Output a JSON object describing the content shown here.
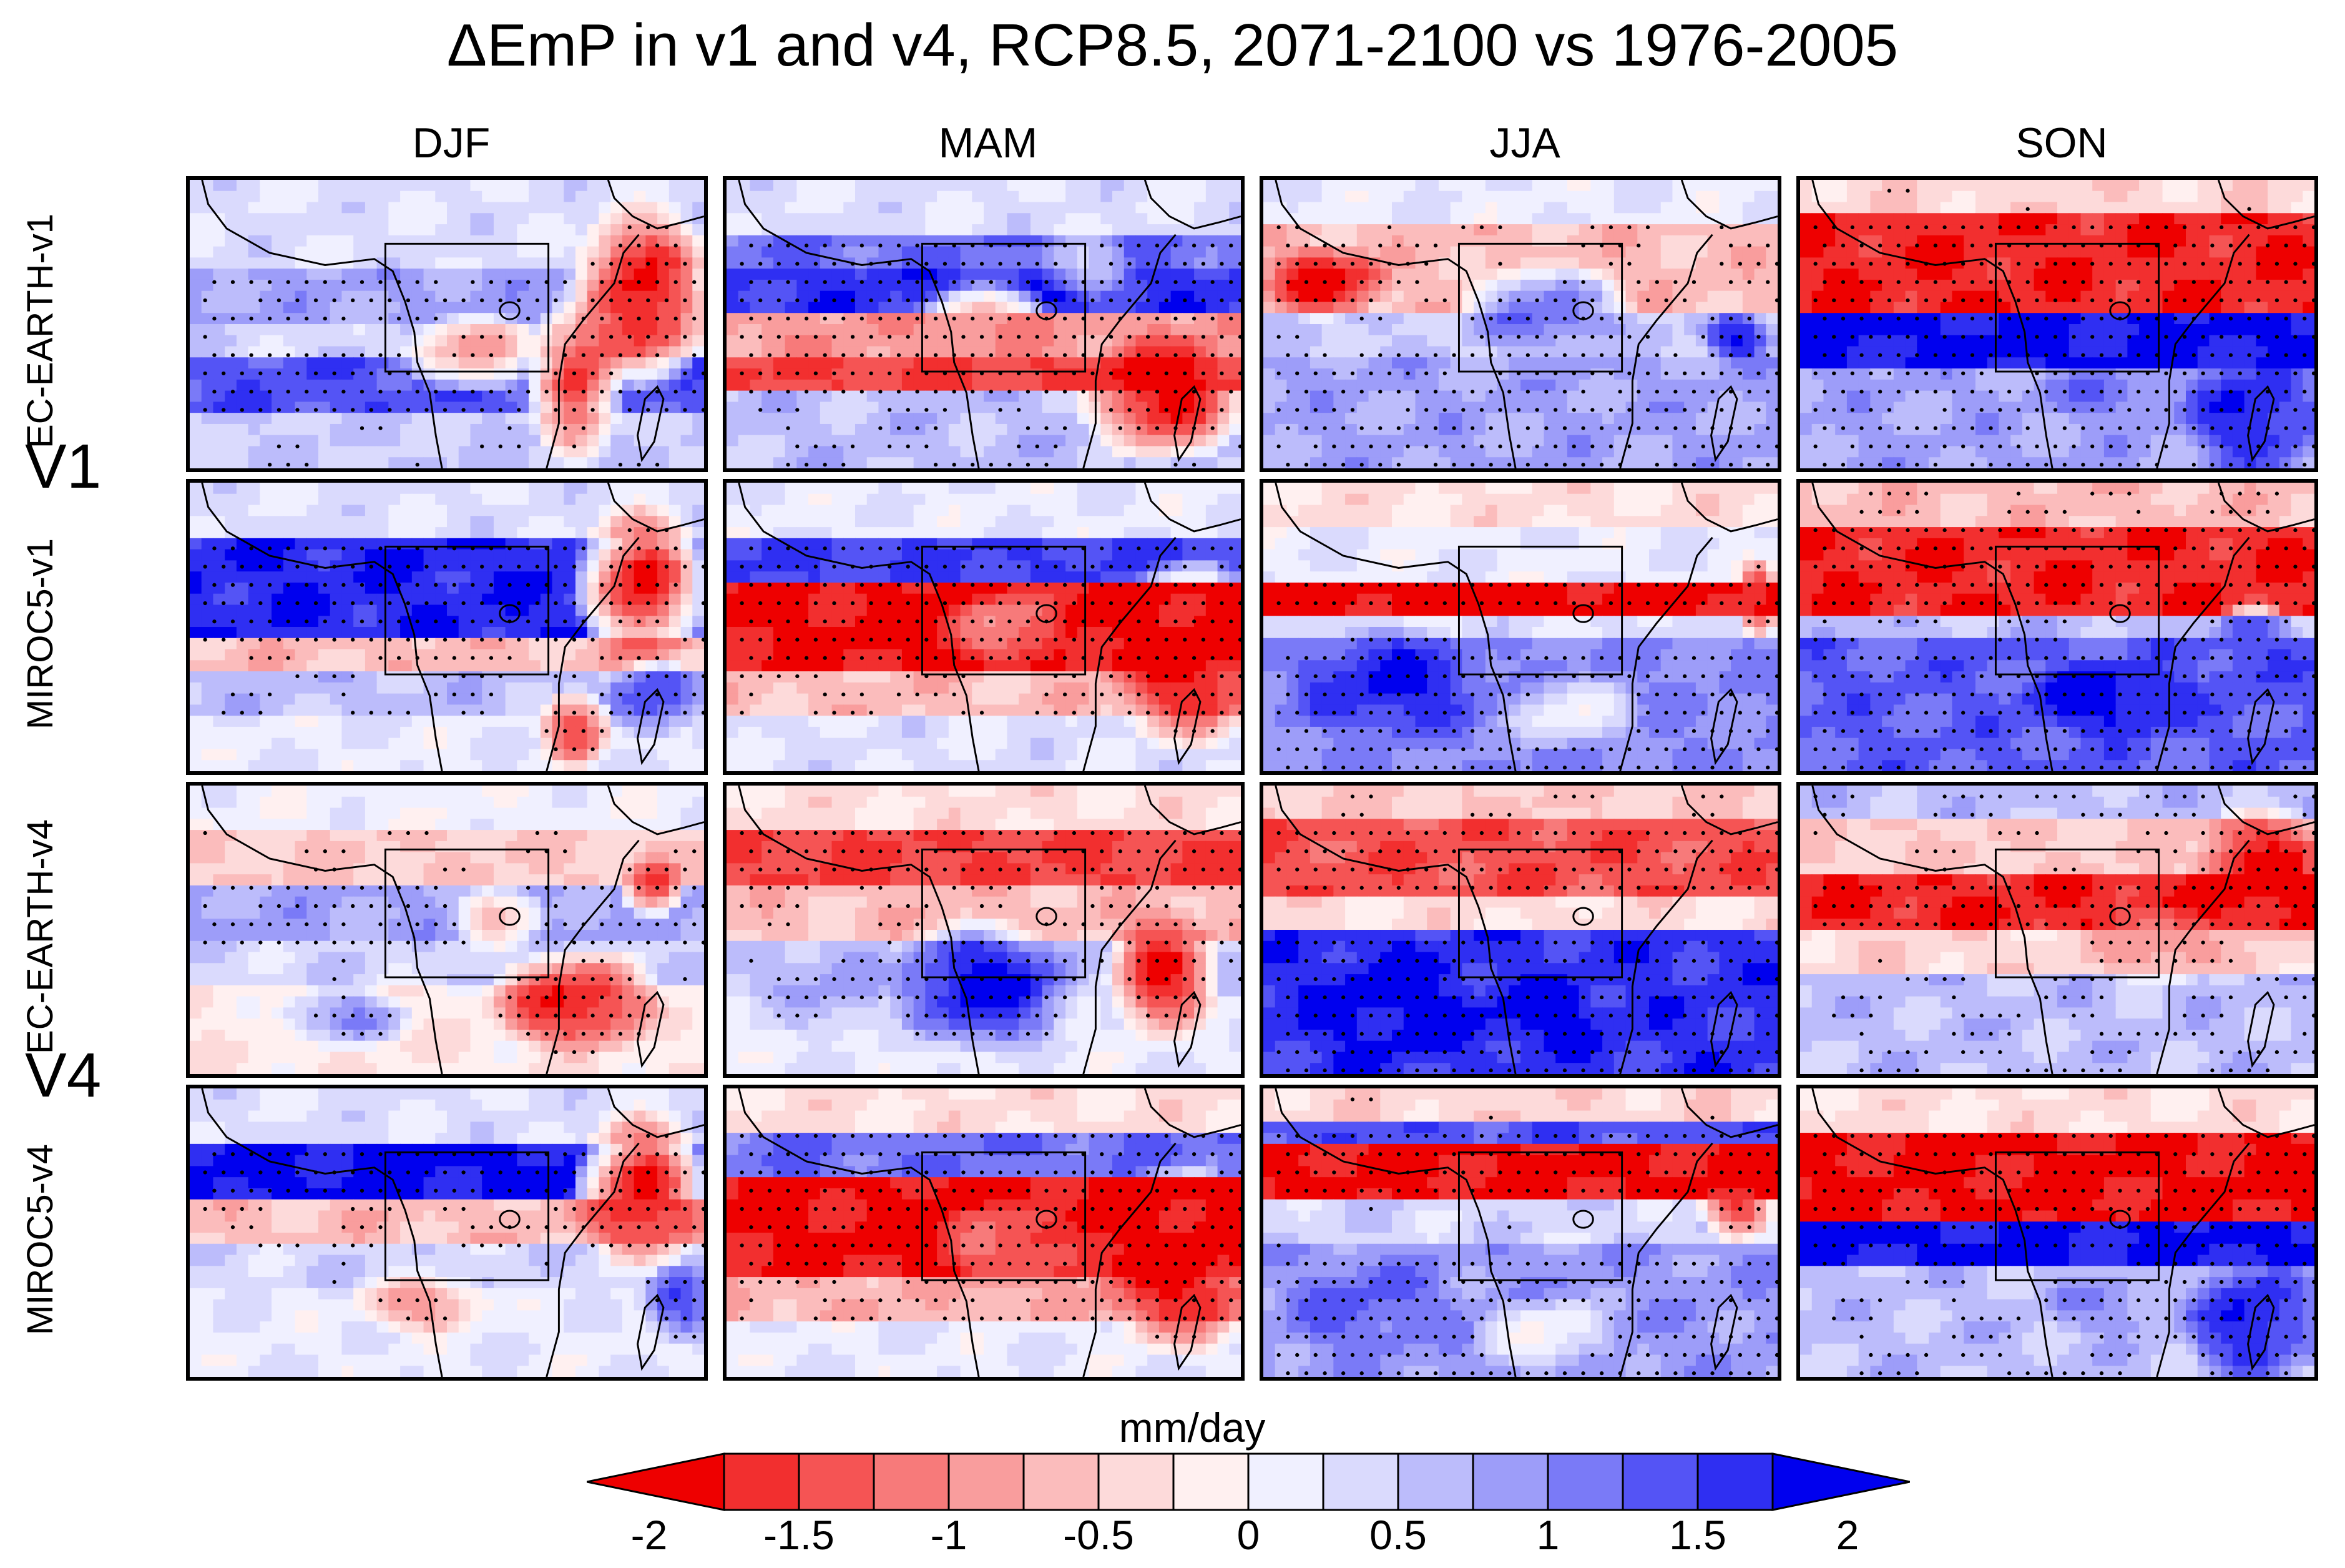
{
  "title": "ΔEmP in v1 and v4, RCP8.5, 2071-2100 vs 1976-2005",
  "seasons": [
    "DJF",
    "MAM",
    "JJA",
    "SON"
  ],
  "row_labels": [
    "EC-EARTH-v1",
    "MIROC5-v1",
    "EC-EARTH-v4",
    "MIROC5-v4"
  ],
  "group_labels": [
    "V1",
    "V4"
  ],
  "colorbar": {
    "units": "mm/day",
    "tick_labels": [
      "-2",
      "-1.5",
      "-1",
      "-0.5",
      "0",
      "0.5",
      "1",
      "1.5",
      "2"
    ],
    "levels": [
      -2,
      -1.75,
      -1.5,
      -1.25,
      -1,
      -0.75,
      -0.5,
      -0.25,
      0,
      0.25,
      0.5,
      0.75,
      1,
      1.25,
      1.5,
      1.75,
      2
    ],
    "colors": [
      "#ee0000",
      "#f22f2f",
      "#f55454",
      "#f77a7a",
      "#f99d9d",
      "#fbbcbc",
      "#fddada",
      "#fff0f0",
      "#f0f0ff",
      "#dadafd",
      "#bcbcfb",
      "#9d9df9",
      "#7a7af7",
      "#5454f5",
      "#2f2ff2",
      "#0000ee"
    ],
    "extend": "both"
  },
  "chart_data": {
    "type": "heatmap",
    "title": "ΔEmP in v1 and v4, RCP8.5, 2071-2100 vs 1976-2005",
    "units": "mm/day",
    "range": [
      -2,
      2
    ],
    "columns": [
      "DJF",
      "MAM",
      "JJA",
      "SON"
    ],
    "rows": [
      "EC-EARTH-v1",
      "MIROC5-v1",
      "EC-EARTH-v4",
      "MIROC5-v4"
    ],
    "stippling": true,
    "region_box": true,
    "panels": [
      [
        {
          "bands": [
            [
              0.0,
              0.3,
              0.3
            ],
            [
              0.3,
              0.5,
              0.8
            ],
            [
              0.5,
              0.6,
              0.4
            ],
            [
              0.6,
              0.8,
              1.4
            ],
            [
              0.8,
              1.0,
              0.5
            ]
          ],
          "blobs": [
            [
              0.88,
              0.4,
              0.15,
              0.35,
              -1.9
            ],
            [
              0.75,
              0.7,
              0.1,
              0.3,
              -1.6
            ],
            [
              0.55,
              0.6,
              0.15,
              0.15,
              -0.8
            ]
          ]
        },
        {
          "bands": [
            [
              0.0,
              0.2,
              0.3
            ],
            [
              0.2,
              0.3,
              1.2
            ],
            [
              0.3,
              0.45,
              1.6
            ],
            [
              0.45,
              0.6,
              -0.9
            ],
            [
              0.6,
              0.75,
              -1.5
            ],
            [
              0.75,
              1.0,
              0.6
            ]
          ],
          "blobs": [
            [
              0.85,
              0.75,
              0.18,
              0.25,
              -1.9
            ],
            [
              0.5,
              0.5,
              0.15,
              0.15,
              -1.0
            ],
            [
              0.7,
              0.3,
              0.1,
              0.12,
              0.5
            ]
          ]
        },
        {
          "bands": [
            [
              0.0,
              0.15,
              0.2
            ],
            [
              0.15,
              0.45,
              -0.6
            ],
            [
              0.45,
              0.6,
              0.5
            ],
            [
              0.6,
              1.0,
              0.8
            ]
          ],
          "blobs": [
            [
              0.12,
              0.35,
              0.14,
              0.14,
              -1.9
            ],
            [
              0.55,
              0.45,
              0.18,
              0.18,
              1.2
            ],
            [
              0.92,
              0.55,
              0.08,
              0.1,
              1.8
            ]
          ]
        },
        {
          "bands": [
            [
              0.0,
              0.12,
              -0.4
            ],
            [
              0.12,
              0.45,
              -1.7
            ],
            [
              0.45,
              0.65,
              1.8
            ],
            [
              0.65,
              1.0,
              0.8
            ]
          ],
          "blobs": [
            [
              0.88,
              0.8,
              0.15,
              0.25,
              1.8
            ],
            [
              0.6,
              0.75,
              0.15,
              0.1,
              1.2
            ]
          ]
        }
      ],
      [
        {
          "bands": [
            [
              0.0,
              0.2,
              0.3
            ],
            [
              0.2,
              0.55,
              1.7
            ],
            [
              0.55,
              0.65,
              -0.6
            ],
            [
              0.65,
              0.8,
              0.6
            ],
            [
              0.8,
              1.0,
              0.2
            ]
          ],
          "blobs": [
            [
              0.88,
              0.35,
              0.14,
              0.3,
              -1.9
            ],
            [
              0.75,
              0.85,
              0.08,
              0.15,
              -1.5
            ],
            [
              0.9,
              0.75,
              0.1,
              0.15,
              1.5
            ]
          ]
        },
        {
          "bands": [
            [
              0.0,
              0.2,
              0.2
            ],
            [
              0.2,
              0.35,
              1.5
            ],
            [
              0.35,
              0.65,
              -1.8
            ],
            [
              0.65,
              0.8,
              -0.6
            ],
            [
              0.8,
              1.0,
              0.3
            ]
          ],
          "blobs": [
            [
              0.9,
              0.6,
              0.18,
              0.35,
              -1.9
            ],
            [
              0.55,
              0.5,
              0.12,
              0.15,
              -1.0
            ]
          ]
        },
        {
          "bands": [
            [
              0.0,
              0.15,
              -0.3
            ],
            [
              0.15,
              0.35,
              0.2
            ],
            [
              0.35,
              0.45,
              -1.9
            ],
            [
              0.45,
              0.55,
              0.3
            ],
            [
              0.55,
              1.0,
              1.0
            ]
          ],
          "blobs": [
            [
              0.25,
              0.7,
              0.22,
              0.22,
              1.8
            ],
            [
              0.6,
              0.8,
              0.15,
              0.15,
              0.1
            ],
            [
              0.96,
              0.4,
              0.05,
              0.15,
              -1.7
            ]
          ]
        },
        {
          "bands": [
            [
              0.0,
              0.15,
              -0.6
            ],
            [
              0.15,
              0.45,
              -1.7
            ],
            [
              0.45,
              0.55,
              0.6
            ],
            [
              0.55,
              1.0,
              1.3
            ]
          ],
          "blobs": [
            [
              0.6,
              0.75,
              0.2,
              0.15,
              1.9
            ],
            [
              0.88,
              0.6,
              0.1,
              0.2,
              1.5
            ]
          ]
        }
      ],
      [
        {
          "bands": [
            [
              0.0,
              0.15,
              0.1
            ],
            [
              0.15,
              0.35,
              -0.5
            ],
            [
              0.35,
              0.55,
              0.8
            ],
            [
              0.55,
              0.7,
              0.4
            ],
            [
              0.7,
              1.0,
              -0.2
            ]
          ],
          "blobs": [
            [
              0.75,
              0.75,
              0.18,
              0.2,
              -1.8
            ],
            [
              0.9,
              0.35,
              0.07,
              0.12,
              -1.5
            ],
            [
              0.3,
              0.8,
              0.15,
              0.12,
              1.0
            ],
            [
              0.6,
              0.45,
              0.1,
              0.12,
              -0.6
            ]
          ]
        },
        {
          "bands": [
            [
              0.0,
              0.15,
              -0.3
            ],
            [
              0.15,
              0.35,
              -1.5
            ],
            [
              0.35,
              0.55,
              -0.6
            ],
            [
              0.55,
              0.75,
              0.5
            ],
            [
              0.75,
              1.0,
              0.2
            ]
          ],
          "blobs": [
            [
              0.5,
              0.7,
              0.2,
              0.25,
              1.9
            ],
            [
              0.85,
              0.65,
              0.12,
              0.25,
              -1.8
            ],
            [
              0.2,
              0.7,
              0.15,
              0.2,
              0.8
            ]
          ]
        },
        {
          "bands": [
            [
              0.0,
              0.12,
              -0.5
            ],
            [
              0.12,
              0.4,
              -1.4
            ],
            [
              0.4,
              0.5,
              -0.3
            ],
            [
              0.5,
              1.0,
              1.6
            ]
          ],
          "blobs": [
            [
              0.25,
              0.75,
              0.2,
              0.25,
              1.9
            ],
            [
              0.55,
              0.8,
              0.15,
              0.15,
              1.9
            ]
          ]
        },
        {
          "bands": [
            [
              0.0,
              0.12,
              0.6
            ],
            [
              0.12,
              0.3,
              -0.5
            ],
            [
              0.3,
              0.5,
              -1.7
            ],
            [
              0.5,
              0.65,
              -0.4
            ],
            [
              0.65,
              1.0,
              0.6
            ]
          ],
          "blobs": [
            [
              0.9,
              0.3,
              0.15,
              0.25,
              -1.9
            ],
            [
              0.7,
              0.55,
              0.15,
              0.15,
              -1.0
            ]
          ]
        }
      ],
      [
        {
          "bands": [
            [
              0.0,
              0.2,
              0.3
            ],
            [
              0.2,
              0.4,
              1.8
            ],
            [
              0.4,
              0.55,
              -0.6
            ],
            [
              0.55,
              0.7,
              0.4
            ],
            [
              0.7,
              1.0,
              0.2
            ]
          ],
          "blobs": [
            [
              0.88,
              0.35,
              0.14,
              0.3,
              -1.9
            ],
            [
              0.95,
              0.75,
              0.08,
              0.15,
              1.5
            ],
            [
              0.45,
              0.75,
              0.15,
              0.12,
              -0.9
            ]
          ]
        },
        {
          "bands": [
            [
              0.0,
              0.15,
              -0.3
            ],
            [
              0.15,
              0.3,
              1.2
            ],
            [
              0.3,
              0.65,
              -1.8
            ],
            [
              0.65,
              0.8,
              -0.7
            ],
            [
              0.8,
              1.0,
              0.2
            ]
          ],
          "blobs": [
            [
              0.88,
              0.6,
              0.18,
              0.35,
              -1.9
            ],
            [
              0.55,
              0.55,
              0.15,
              0.18,
              -1.2
            ]
          ]
        },
        {
          "bands": [
            [
              0.0,
              0.12,
              -0.4
            ],
            [
              0.12,
              0.18,
              1.4
            ],
            [
              0.18,
              0.4,
              -1.8
            ],
            [
              0.4,
              0.55,
              0.4
            ],
            [
              0.55,
              1.0,
              0.9
            ]
          ],
          "blobs": [
            [
              0.55,
              0.85,
              0.15,
              0.15,
              0.0
            ],
            [
              0.92,
              0.4,
              0.08,
              0.15,
              -1.7
            ],
            [
              0.2,
              0.75,
              0.18,
              0.2,
              1.3
            ]
          ]
        },
        {
          "bands": [
            [
              0.0,
              0.15,
              -0.3
            ],
            [
              0.15,
              0.45,
              -1.8
            ],
            [
              0.45,
              0.6,
              1.8
            ],
            [
              0.6,
              1.0,
              0.6
            ]
          ],
          "blobs": [
            [
              0.88,
              0.8,
              0.15,
              0.25,
              1.8
            ],
            [
              0.6,
              0.75,
              0.15,
              0.12,
              1.0
            ]
          ]
        }
      ]
    ]
  }
}
